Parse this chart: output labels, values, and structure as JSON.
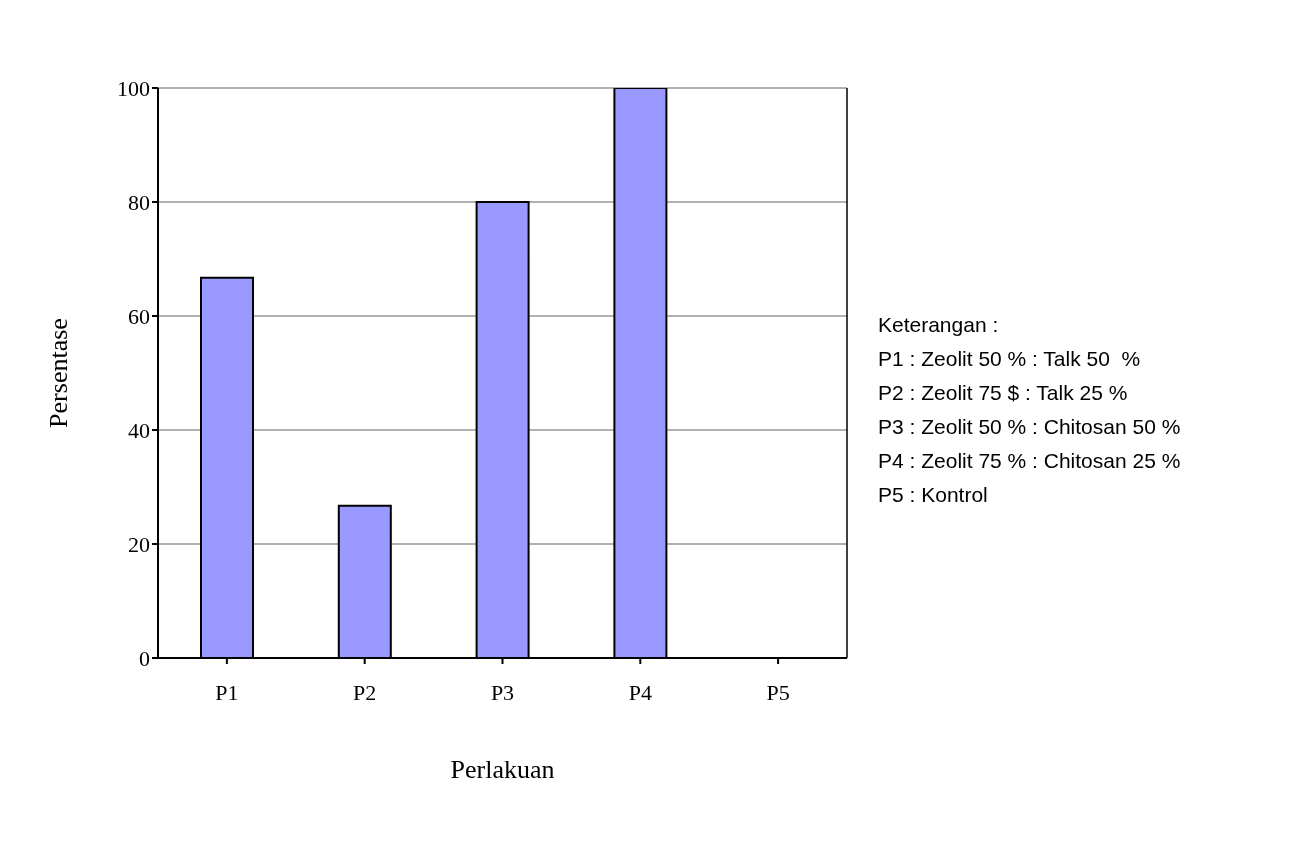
{
  "chart_data": {
    "type": "bar",
    "xlabel": "Perlakuan",
    "ylabel": "Persentase",
    "categories": [
      "P1",
      "P2",
      "P3",
      "P4",
      "P5"
    ],
    "values": [
      66.7,
      26.7,
      80,
      100,
      0
    ],
    "color": "#9999ff",
    "ylim": [
      0,
      100
    ],
    "yticks": [
      0,
      20,
      40,
      60,
      80,
      100
    ],
    "grid": "y",
    "legend": false,
    "annotations": [
      "Keterangan :",
      "P1 : Zeolit 50 % : Talk 50  %",
      "P2 : Zeolit 75 $ : Talk 25 %",
      "P3 : Zeolit 50 % : Chitosan 50 %",
      "P4 : Zeolit 75 % : Chitosan 25 %",
      "P5 : Kontrol"
    ]
  }
}
